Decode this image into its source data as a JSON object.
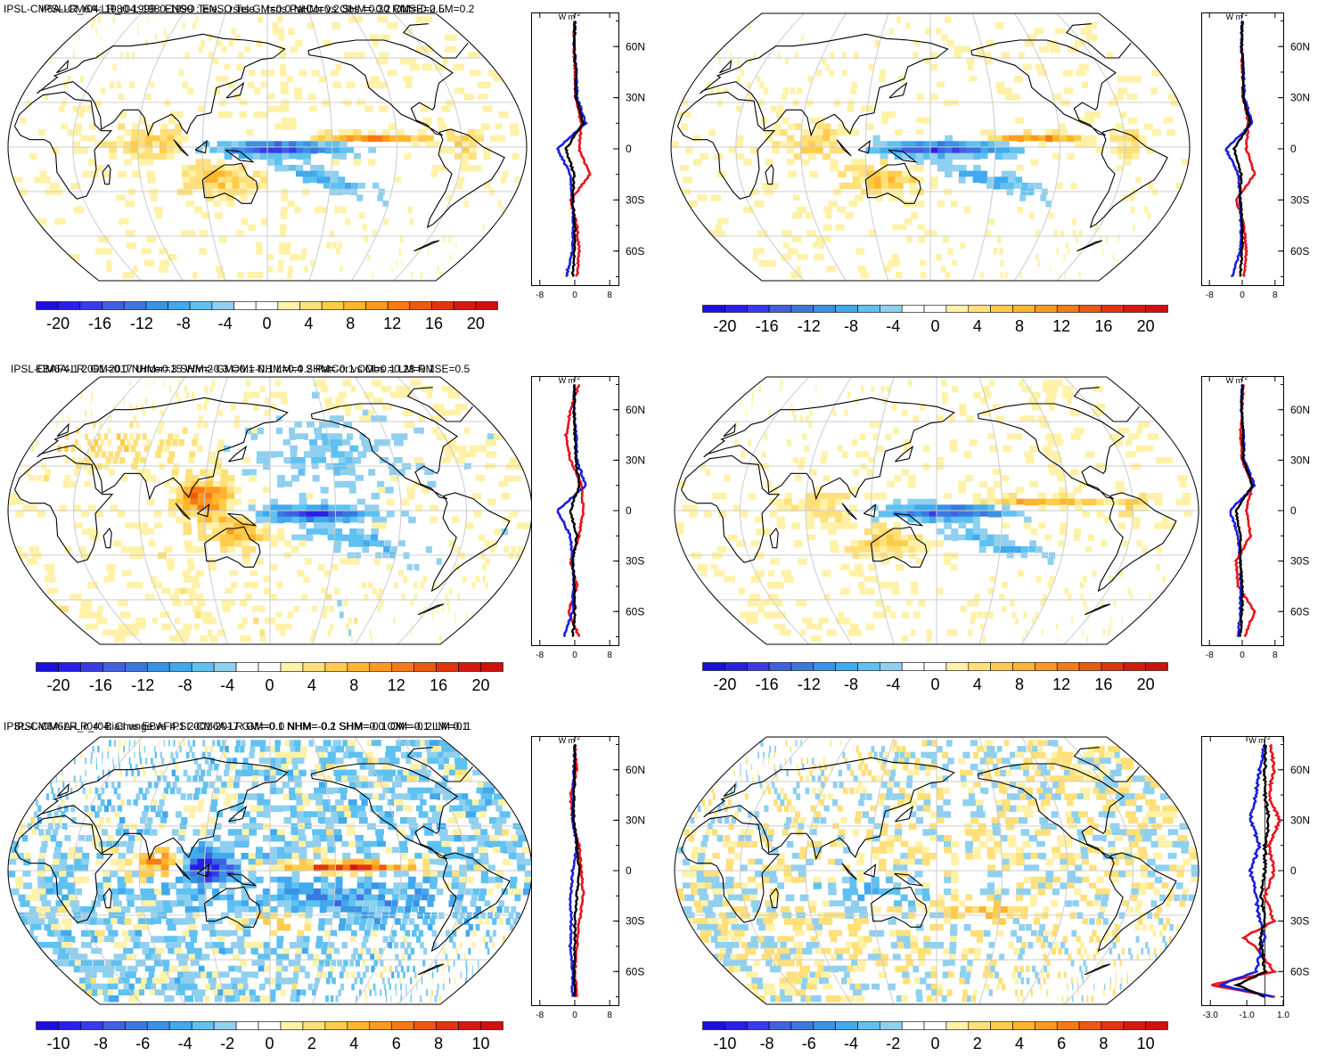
{
  "colors": {
    "scale": [
      "#2a1fe6",
      "#3a3ae8",
      "#4060e0",
      "#3a78e0",
      "#3a92e6",
      "#41a9ee",
      "#5ec1f2",
      "#8fd0f0",
      "#ffffff",
      "#ffffff",
      "#fff2a8",
      "#ffe07a",
      "#ffcc4a",
      "#ffb52e",
      "#ff9a1e",
      "#f57a14",
      "#ec5a10",
      "#e0360e",
      "#d21a0e"
    ],
    "grid": "#cccccc",
    "land": "#000000",
    "series": [
      "#e8141e",
      "#1a20dc",
      "#000000"
    ]
  },
  "panels": [
    {
      "title": "IPSL-CM6A-LR_r04: 1980-1999 : ENSO Tele. : rsns GM=0.0 NHM=0.2 SHM=-0.2 OM=-0.2 LM=0.2",
      "unit": "W m",
      "unit_sup": "-2",
      "lat_ticks": [
        "60N",
        "30N",
        "0",
        "30S",
        "60S"
      ],
      "x_ticks": [
        "-8",
        "0",
        "8"
      ],
      "colorbar_labels": [
        "-20",
        "-16",
        "-12",
        "-8",
        "-4",
        "0",
        "4",
        "8",
        "12",
        "16",
        "20"
      ]
    },
    {
      "title": "IPSL-CM6A-LR_r04: 1980-1999 : ENSO Tele. : rsns PatCor vs Obs =0.30 RMSE=0.5",
      "unit": "W m",
      "unit_sup": "-2",
      "lat_ticks": [
        "60N",
        "30N",
        "0",
        "30S",
        "60S"
      ],
      "x_ticks": [
        "-8",
        "0",
        "8"
      ],
      "colorbar_labels": [
        "-20",
        "-16",
        "-12",
        "-8",
        "-4",
        "0",
        "4",
        "8",
        "12",
        "16",
        "20"
      ]
    },
    {
      "title": "EBAF4.1 2001-2017 Uncer=15 W/m2 GM=0.1 NHM=0.4 SHM=-0.1 OM=0.1 LM=0.1",
      "unit": "W m",
      "unit_sup": "-2",
      "lat_ticks": [
        "60N",
        "30N",
        "0",
        "30S",
        "60S"
      ],
      "x_ticks": [
        "-8",
        "0",
        "8"
      ],
      "colorbar_labels": [
        "-20",
        "-16",
        "-12",
        "-8",
        "-4",
        "0",
        "4",
        "8",
        "12",
        "16",
        "20"
      ]
    },
    {
      "title": "IPSL-CM6A-LR: GM=0.0 NHM=0.3 SHM=-0.3 OM=-0.1 LM=0.2 PatCor vs Obs =0.28 RMSE=0.5",
      "unit": "W m",
      "unit_sup": "-2",
      "lat_ticks": [
        "60N",
        "30N",
        "0",
        "30S",
        "60S"
      ],
      "x_ticks": [
        "-8",
        "0",
        "8"
      ],
      "colorbar_labels": [
        "-20",
        "-16",
        "-12",
        "-8",
        "-4",
        "0",
        "4",
        "8",
        "12",
        "16",
        "20"
      ]
    },
    {
      "title": "IPSL-CM6A-LR_r04: Bias vs EBAF4.1 2001-2017 GM=-0.1 NHM=-0.2 SHM=-0.1 OM=-0.2 LM=0.1",
      "unit": "W m",
      "unit_sup": "-2",
      "lat_ticks": [
        "60N",
        "30N",
        "0",
        "30S",
        "60S"
      ],
      "x_ticks": [
        "-8",
        "0",
        "8"
      ],
      "colorbar_labels": [
        "-10",
        "-8",
        "-6",
        "-4",
        "-2",
        "0",
        "2",
        "4",
        "6",
        "8",
        "10"
      ]
    },
    {
      "title": "IPSL-CM6A-LR_r04: Change vs IPSL-CM6A-LR GM=0.0 NHM=-0.1 SHM=0.0 OM=-0.1 LM=0.1",
      "unit": "W m",
      "unit_sup": "-2",
      "lat_ticks": [
        "60N",
        "30N",
        "0",
        "30S",
        "60S"
      ],
      "x_ticks": [
        "-3.0",
        "-1.0",
        "1.0"
      ],
      "colorbar_labels": [
        "-10",
        "-8",
        "-6",
        "-4",
        "-2",
        "0",
        "2",
        "4",
        "6",
        "8",
        "10"
      ]
    }
  ],
  "chart_data": [
    {
      "type": "heatmap",
      "title": "IPSL-CM6A-LR_r04: 1980-1999 : ENSO Tele. : rsns GM=0.0 NHM=0.2 SHM=-0.2 OM=-0.2 LM=0.2",
      "ylabel": "W m-2",
      "zlim": [
        -20,
        20
      ],
      "xlim": [
        -10,
        10
      ],
      "ylim": [
        -80,
        80
      ],
      "zonal_mean": {
        "lat": [
          -75,
          -60,
          -45,
          -30,
          -15,
          0,
          15,
          30,
          45,
          60,
          75
        ],
        "series": [
          {
            "values": [
              0.5,
              1.0,
              0.5,
              -1.0,
              3.5,
              1.0,
              1.5,
              0.2,
              0.1,
              -0.2,
              0.0
            ]
          },
          {
            "values": [
              -2.0,
              -0.5,
              -0.3,
              -0.5,
              -1.0,
              -4.0,
              2.5,
              0.5,
              0.3,
              -0.2,
              0.0
            ]
          },
          {
            "values": [
              -0.5,
              0.0,
              0.0,
              -0.5,
              -0.2,
              -2.0,
              2.0,
              0.3,
              0.2,
              -0.1,
              0.0
            ]
          }
        ]
      }
    },
    {
      "type": "heatmap",
      "title": "IPSL-CM6A-LR_r04: 1980-1999 : ENSO Tele. : rsns PatCor vs Obs =0.30 RMSE=0.5",
      "ylabel": "W m-2",
      "zlim": [
        -20,
        20
      ],
      "xlim": [
        -10,
        10
      ],
      "ylim": [
        -80,
        80
      ],
      "zonal_mean": {
        "lat": [
          -75,
          -60,
          -45,
          -30,
          -15,
          0,
          15,
          30,
          45,
          60,
          75
        ],
        "series": [
          {
            "values": [
              0.5,
              1.0,
              0.5,
              -1.5,
              3.0,
              1.0,
              1.5,
              0.2,
              0.1,
              -0.2,
              0.0
            ]
          },
          {
            "values": [
              -2.5,
              -0.5,
              -0.3,
              -0.5,
              -1.0,
              -4.0,
              2.5,
              0.5,
              0.3,
              -0.2,
              0.0
            ]
          },
          {
            "values": [
              -0.5,
              0.0,
              0.0,
              -0.5,
              -0.2,
              -2.0,
              2.0,
              0.3,
              0.2,
              -0.1,
              0.0
            ]
          }
        ]
      }
    },
    {
      "type": "heatmap",
      "title": "EBAF4.1 2001-2017 Uncer=15 W/m2 GM=0.1 NHM=0.4 SHM=-0.1 OM=0.1 LM=0.1",
      "ylabel": "W m-2",
      "zlim": [
        -20,
        20
      ],
      "xlim": [
        -10,
        10
      ],
      "ylim": [
        -80,
        80
      ],
      "zonal_mean": {
        "lat": [
          -75,
          -60,
          -45,
          -30,
          -15,
          0,
          15,
          30,
          45,
          60,
          75
        ],
        "series": [
          {
            "values": [
              1.0,
              -1.5,
              0.5,
              -1.0,
              1.0,
              2.0,
              1.5,
              -1.0,
              -2.0,
              -1.0,
              1.0
            ]
          },
          {
            "values": [
              -2.5,
              -0.5,
              -0.3,
              -0.5,
              -1.0,
              -4.0,
              2.5,
              0.5,
              0.3,
              -0.2,
              0.0
            ]
          },
          {
            "values": [
              -0.5,
              0.0,
              0.0,
              -0.5,
              0.5,
              -1.0,
              1.0,
              0.3,
              0.0,
              -0.2,
              0.0
            ]
          }
        ]
      }
    },
    {
      "type": "heatmap",
      "title": "IPSL-CM6A-LR: GM=0.0 NHM=0.3 SHM=-0.3 OM=-0.1 LM=0.2 PatCor vs Obs =0.28 RMSE=0.5",
      "ylabel": "W m-2",
      "zlim": [
        -20,
        20
      ],
      "xlim": [
        -10,
        10
      ],
      "ylim": [
        -80,
        80
      ],
      "zonal_mean": {
        "lat": [
          -75,
          -60,
          -45,
          -30,
          -15,
          0,
          15,
          30,
          45,
          60,
          75
        ],
        "series": [
          {
            "values": [
              0.5,
              3.0,
              -1.0,
              -1.5,
              2.0,
              1.0,
              2.5,
              0.0,
              -0.5,
              0.0,
              0.2
            ]
          },
          {
            "values": [
              -1.0,
              -0.5,
              -0.3,
              -0.5,
              -1.0,
              -3.0,
              3.0,
              0.5,
              0.3,
              -0.2,
              0.0
            ]
          },
          {
            "values": [
              -0.5,
              0.0,
              0.0,
              -0.5,
              -0.5,
              -1.5,
              2.5,
              0.3,
              0.2,
              -0.1,
              0.0
            ]
          }
        ]
      }
    },
    {
      "type": "heatmap",
      "title": "IPSL-CM6A-LR_r04: Bias vs EBAF4.1 2001-2017 GM=-0.1 NHM=-0.2 SHM=-0.1 OM=-0.2 LM=0.1",
      "ylabel": "W m-2",
      "zlim": [
        -10,
        10
      ],
      "xlim": [
        -10,
        10
      ],
      "ylim": [
        -80,
        80
      ],
      "zonal_mean": {
        "lat": [
          -75,
          -60,
          -45,
          -30,
          -15,
          0,
          15,
          30,
          45,
          60,
          75
        ],
        "series": [
          {
            "values": [
              0.5,
              0.0,
              0.5,
              1.0,
              2.0,
              1.5,
              1.0,
              -0.5,
              -1.0,
              0.5,
              0.0
            ]
          },
          {
            "values": [
              -0.5,
              -0.5,
              -1.0,
              -0.8,
              -1.0,
              -0.5,
              0.5,
              -0.5,
              -0.3,
              -0.2,
              0.0
            ]
          },
          {
            "values": [
              0.0,
              -0.2,
              0.0,
              0.0,
              0.5,
              1.0,
              0.5,
              -0.3,
              -0.2,
              0.0,
              0.0
            ]
          }
        ]
      }
    },
    {
      "type": "heatmap",
      "title": "IPSL-CM6A-LR_r04: Change vs IPSL-CM6A-LR GM=0.0 NHM=-0.1 SHM=0.0 OM=-0.1 LM=0.1",
      "ylabel": "W m-2",
      "zlim": [
        -10,
        10
      ],
      "xlim": [
        -3.5,
        1.0
      ],
      "ylim": [
        -80,
        80
      ],
      "zonal_mean": {
        "lat": [
          -75,
          -68,
          -60,
          -45,
          -40,
          -30,
          -15,
          0,
          15,
          30,
          45,
          60,
          75
        ],
        "series": [
          {
            "values": [
              0.5,
              -3.0,
              0.5,
              -0.5,
              -1.2,
              0.5,
              0.0,
              0.5,
              0.2,
              0.8,
              0.2,
              0.5,
              0.3
            ]
          },
          {
            "values": [
              0.5,
              -2.5,
              -0.5,
              -0.2,
              0.0,
              -0.3,
              -0.5,
              -0.8,
              -0.3,
              -0.8,
              -0.5,
              -0.3,
              0.0
            ]
          },
          {
            "values": [
              0.0,
              -1.5,
              0.0,
              -0.2,
              -0.3,
              0.0,
              -0.2,
              0.0,
              0.0,
              0.2,
              0.0,
              0.0,
              0.0
            ]
          }
        ]
      }
    }
  ]
}
